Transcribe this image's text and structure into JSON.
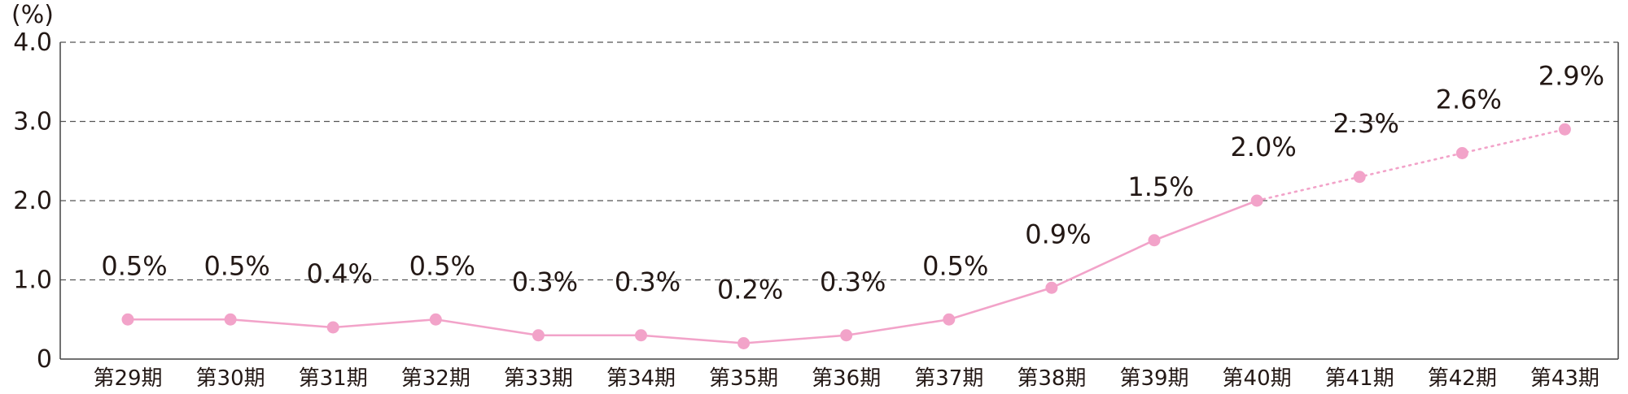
{
  "chart_data": {
    "type": "line",
    "y_unit_label": "(%)",
    "yticks": [
      "0",
      "1.0",
      "2.0",
      "3.0",
      "4.0"
    ],
    "ylim": [
      0,
      4.0
    ],
    "grid": true,
    "categories": [
      "第29期",
      "第30期",
      "第31期",
      "第32期",
      "第33期",
      "第34期",
      "第35期",
      "第36期",
      "第37期",
      "第38期",
      "第39期",
      "第40期",
      "第41期",
      "第42期",
      "第43期"
    ],
    "series": [
      {
        "values": [
          0.5,
          0.5,
          0.4,
          0.5,
          0.3,
          0.3,
          0.2,
          0.3,
          0.5,
          0.9,
          1.5,
          2.0,
          2.3,
          2.6,
          2.9
        ],
        "labels": [
          "0.5%",
          "0.5%",
          "0.4%",
          "0.5%",
          "0.3%",
          "0.3%",
          "0.2%",
          "0.3%",
          "0.5%",
          "0.9%",
          "1.5%",
          "2.0%",
          "2.3%",
          "2.6%",
          "2.9%"
        ],
        "color": "#f2a3c9",
        "solid_through_index": 11,
        "dotted_after": true
      }
    ]
  }
}
